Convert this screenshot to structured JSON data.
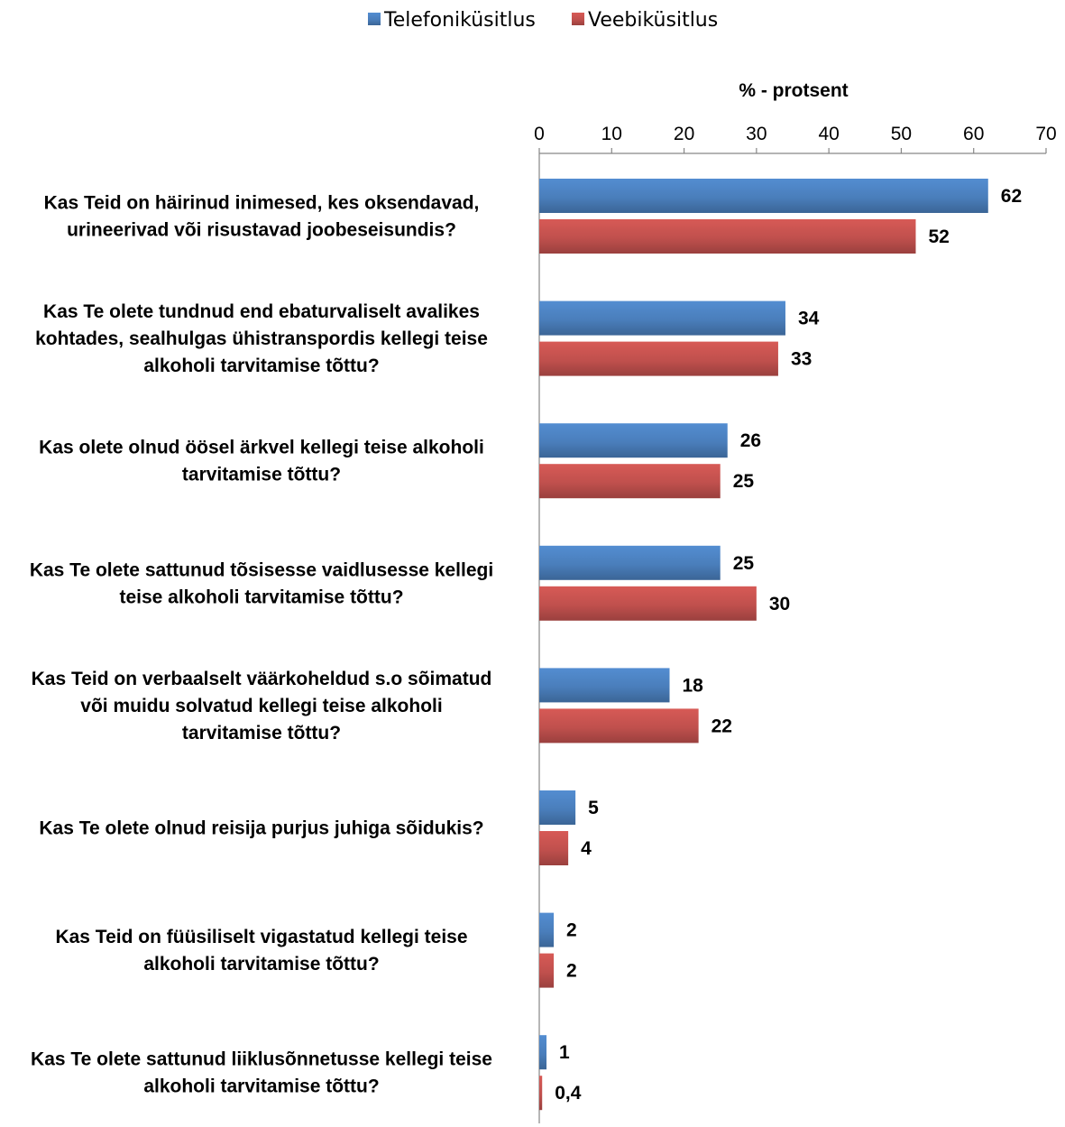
{
  "chart_data": {
    "type": "bar",
    "orientation": "horizontal",
    "xlabel": "% - protsent",
    "xlim": [
      0,
      70
    ],
    "xticks": [
      "0",
      "10",
      "20",
      "30",
      "40",
      "50",
      "60",
      "70"
    ],
    "legend_position": "top-center",
    "grid": false,
    "categories": [
      [
        "Kas Teid on häirinud inimesed, kes oksendavad,",
        "urineerivad või risustavad joobeseisundis?"
      ],
      [
        "Kas Te olete tundnud end ebaturvaliselt avalikes",
        "kohtades, sealhulgas ühistranspordis kellegi teise",
        "alkoholi tarvitamise tõttu?"
      ],
      [
        "Kas olete olnud öösel ärkvel kellegi teise alkoholi",
        "tarvitamise tõttu?"
      ],
      [
        "Kas Te olete sattunud tõsisesse vaidlusesse kellegi",
        "teise alkoholi tarvitamise tõttu?"
      ],
      [
        "Kas Teid on verbaalselt väärkoheldud s.o sõimatud",
        "või muidu solvatud kellegi teise alkoholi",
        "tarvitamise tõttu?"
      ],
      [
        "Kas Te olete olnud reisija purjus juhiga sõidukis?"
      ],
      [
        "Kas Teid on füüsiliselt vigastatud kellegi teise",
        "alkoholi tarvitamise tõttu?"
      ],
      [
        "Kas Te olete sattunud liiklusõnnetusse kellegi teise",
        "alkoholi tarvitamise tõttu?"
      ]
    ],
    "series": [
      {
        "name": "Telefoniküsitlus",
        "color": "#4a7ebb",
        "values": [
          62,
          34,
          26,
          25,
          18,
          5,
          2,
          1
        ],
        "labels": [
          "62",
          "34",
          "26",
          "25",
          "18",
          "5",
          "2",
          "1"
        ]
      },
      {
        "name": "Veebiküsitlus",
        "color": "#c0504d",
        "values": [
          52,
          33,
          25,
          30,
          22,
          4,
          2,
          0.4
        ],
        "labels": [
          "52",
          "33",
          "25",
          "30",
          "22",
          "4",
          "2",
          "0,4"
        ]
      }
    ]
  }
}
